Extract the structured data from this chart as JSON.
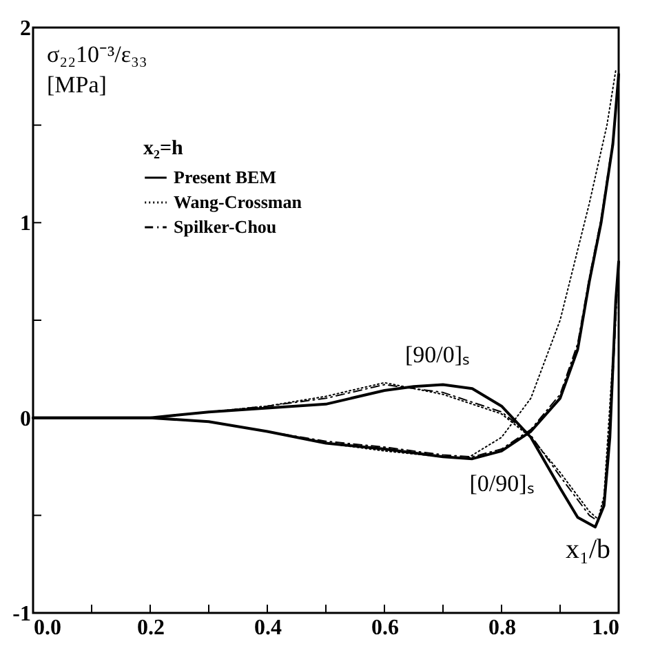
{
  "chart_data": {
    "type": "line",
    "xlabel": "x₁/b",
    "ylabel": "σ₂₂10⁻³/ε₃₃\n[MPa]",
    "legend_title": "x₂=h",
    "xlim": [
      0,
      1
    ],
    "ylim": [
      -1,
      2
    ],
    "xticks": [
      {
        "value": 0,
        "label": "0.0"
      },
      {
        "value": 0.1,
        "label": null
      },
      {
        "value": 0.2,
        "label": "0.2"
      },
      {
        "value": 0.3,
        "label": null
      },
      {
        "value": 0.4,
        "label": "0.4"
      },
      {
        "value": 0.5,
        "label": null
      },
      {
        "value": 0.6,
        "label": "0.6"
      },
      {
        "value": 0.7,
        "label": null
      },
      {
        "value": 0.8,
        "label": "0.8"
      },
      {
        "value": 0.9,
        "label": null
      },
      {
        "value": 1,
        "label": "1.0"
      }
    ],
    "yticks": [
      -1,
      {
        "value": -0.5,
        "label": null
      },
      0,
      {
        "value": 0.5,
        "label": null
      },
      1,
      {
        "value": 1.5,
        "label": null
      },
      2
    ],
    "grid": false,
    "legend": "top left",
    "marker": "none",
    "series": [
      {
        "name": "Present BEM",
        "color": "#000000",
        "line_style": "solid",
        "x": [
          0,
          0.2,
          0.3,
          0.4,
          0.5,
          0.6,
          0.65,
          0.7,
          0.75,
          0.8,
          0.85,
          0.9,
          0.93,
          0.96,
          0.975,
          0.985,
          0.995,
          1.0
        ],
        "values": [
          0,
          0,
          0.03,
          0.05,
          0.07,
          0.14,
          0.16,
          0.17,
          0.15,
          0.06,
          -0.1,
          -0.36,
          -0.51,
          -0.56,
          -0.45,
          -0.1,
          0.6,
          0.8
        ]
      },
      {
        "color": "#000000",
        "line_style": "solid",
        "x": [
          0,
          0.2,
          0.3,
          0.4,
          0.5,
          0.6,
          0.7,
          0.75,
          0.8,
          0.85,
          0.9,
          0.93,
          0.95,
          0.97,
          0.99,
          1.0
        ],
        "values": [
          0,
          0,
          -0.02,
          -0.07,
          -0.13,
          -0.16,
          -0.2,
          -0.21,
          -0.17,
          -0.07,
          0.1,
          0.35,
          0.7,
          1.0,
          1.4,
          1.76
        ]
      },
      {
        "name": "Wang-Crossman",
        "color": "#000000",
        "line_style": "dotted",
        "x": [
          0,
          0.2,
          0.3,
          0.4,
          0.5,
          0.6,
          0.7,
          0.8,
          0.85,
          0.9,
          0.95,
          0.965,
          0.975,
          0.99,
          1.0
        ],
        "values": [
          0,
          0,
          0.03,
          0.06,
          0.11,
          0.18,
          0.12,
          0.02,
          -0.1,
          -0.28,
          -0.48,
          -0.52,
          -0.4,
          0.3,
          0.8
        ]
      },
      {
        "color": "#000000",
        "line_style": "dotted",
        "x": [
          0,
          0.2,
          0.3,
          0.4,
          0.5,
          0.6,
          0.7,
          0.74,
          0.8,
          0.85,
          0.9,
          0.95,
          0.98,
          0.995
        ],
        "values": [
          0,
          0,
          -0.02,
          -0.07,
          -0.13,
          -0.17,
          -0.2,
          -0.21,
          -0.1,
          0.1,
          0.5,
          1.1,
          1.5,
          1.78
        ]
      },
      {
        "name": "Spilker-Chou",
        "color": "#000000",
        "line_style": "dashed",
        "x": [
          0,
          0.2,
          0.3,
          0.4,
          0.5,
          0.6,
          0.7,
          0.8,
          0.85,
          0.9,
          0.95,
          0.965,
          0.975,
          0.99,
          1.0
        ],
        "values": [
          0,
          0,
          0.03,
          0.06,
          0.1,
          0.17,
          0.13,
          0.03,
          -0.09,
          -0.3,
          -0.5,
          -0.53,
          -0.42,
          0.2,
          0.8
        ]
      },
      {
        "color": "#000000",
        "line_style": "dashed",
        "x": [
          0,
          0.2,
          0.3,
          0.4,
          0.5,
          0.6,
          0.7,
          0.75,
          0.8,
          0.85,
          0.9,
          0.93,
          0.95,
          0.97,
          0.99,
          1.0
        ],
        "values": [
          0,
          0,
          -0.02,
          -0.07,
          -0.12,
          -0.15,
          -0.19,
          -0.2,
          -0.16,
          -0.06,
          0.12,
          0.38,
          0.72,
          1.02,
          1.42,
          1.75
        ]
      }
    ],
    "annotations": [
      "[90/0]ₛ",
      "[0/90]ₛ"
    ]
  }
}
